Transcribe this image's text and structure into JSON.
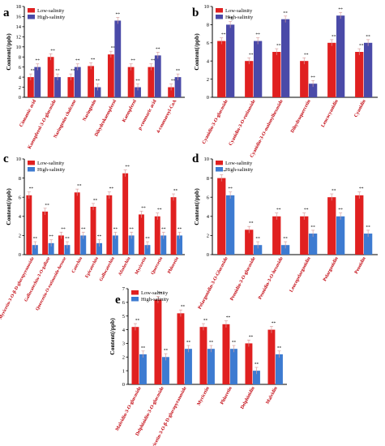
{
  "figure": {
    "width": 475,
    "height": 550
  },
  "colors": {
    "low": "#e02020",
    "high_ab": "#4a4aa8",
    "high_cde": "#3d7bd1",
    "axis": "#000000",
    "panel_label": "#000000"
  },
  "chart_data": [
    {
      "panel": "a",
      "type": "bar",
      "ylabel": "Content(/ppb)",
      "ylim": [
        0,
        18
      ],
      "yticks": [
        0,
        2,
        4,
        6,
        8,
        10,
        12,
        14,
        16,
        18
      ],
      "legend": {
        "placement": "top-left",
        "entries": [
          "Low-salinity",
          "High-salinity"
        ]
      },
      "categories": [
        "Cinnamic acid",
        "Kaempferol-3-O-glucoside",
        "Naringenin chalcone",
        "Naringenin",
        "Dihydrokaempferol",
        "Kaempferol",
        "p-coumaric acid",
        "4-coumaroyl-CoA"
      ],
      "series": [
        {
          "name": "Low-salinity",
          "values": [
            4,
            8,
            4,
            6.2,
            8.5,
            6,
            6,
            2
          ]
        },
        {
          "name": "High-salinity",
          "values": [
            6,
            4,
            6,
            2,
            15.2,
            2,
            8.3,
            4
          ]
        }
      ],
      "significance": "**"
    },
    {
      "panel": "b",
      "type": "bar",
      "ylabel": "Content(/ppb)",
      "ylim": [
        0,
        10
      ],
      "yticks": [
        0,
        2,
        4,
        6,
        8,
        10
      ],
      "legend": {
        "placement": "top-left",
        "entries": [
          "Low-salinity",
          "High-salinity"
        ]
      },
      "categories": [
        "Cyanidin-3-O-glucoside",
        "Cyanidin-3-O-rutinoside",
        "Cyanidin-3-O-malonylhexoside",
        "Dihydroquercetin",
        "Leucocyanidin",
        "Cyanidin"
      ],
      "series": [
        {
          "name": "Low-salinity",
          "values": [
            6.2,
            4,
            5,
            4,
            6,
            5
          ]
        },
        {
          "name": "High-salinity",
          "values": [
            8,
            6.2,
            8.6,
            1.5,
            9,
            6
          ]
        }
      ],
      "significance": "**"
    },
    {
      "panel": "c",
      "type": "bar",
      "ylabel": "Content(/ppb)",
      "ylim": [
        0,
        10
      ],
      "yticks": [
        0,
        2,
        4,
        6,
        8,
        10
      ],
      "legend": {
        "placement": "top-left",
        "entries": [
          "Low-salinity",
          "High-salinity"
        ]
      },
      "categories": [
        "Myricetin-3-O-β-D-glucopyranoside",
        "Gallocatechin-3-O-gallate",
        "Quercetin-O-rutinoside-hexose",
        "Catechin",
        "Epicatechin",
        "Gallocatechin",
        "Afzelechin",
        "Myricetin",
        "Quercetin",
        "Phloretin"
      ],
      "series": [
        {
          "name": "Low-salinity",
          "values": [
            6.2,
            4.5,
            2,
            6.5,
            5,
            6.2,
            8.5,
            4.2,
            4,
            6
          ]
        },
        {
          "name": "High-salinity",
          "values": [
            1,
            1.2,
            1,
            2,
            1.2,
            2,
            2,
            1,
            2,
            2
          ]
        }
      ],
      "significance": "**"
    },
    {
      "panel": "d",
      "type": "bar",
      "ylabel": "Content(/ppb)",
      "ylim": [
        0,
        10
      ],
      "yticks": [
        0,
        2,
        4,
        6,
        8,
        10
      ],
      "legend": {
        "placement": "top-left",
        "entries": [
          "Low-salinity",
          "High-salinity"
        ]
      },
      "categories": [
        "Pelargonidin-3-O-Glucoside",
        "Peonidin-3-O-glucoside",
        "Peonidin-3-O-hexoside",
        "Leucopelargonidin",
        "Pelargonidin",
        "Peonidin"
      ],
      "series": [
        {
          "name": "Low-salinity",
          "values": [
            8,
            2.6,
            4,
            4,
            6,
            6.2
          ]
        },
        {
          "name": "High-salinity",
          "values": [
            6.2,
            1,
            1,
            2.2,
            4,
            2.2
          ]
        }
      ],
      "significance": "**"
    },
    {
      "panel": "e",
      "type": "bar",
      "ylabel": "Content(/ppb)",
      "ylim": [
        0,
        7
      ],
      "yticks": [
        0,
        1,
        2,
        3,
        4,
        5,
        6,
        7
      ],
      "legend": {
        "placement": "top-left",
        "entries": [
          "Low-salinity",
          "High-salinity"
        ]
      },
      "categories": [
        "Malvidin-3-O-glucoside",
        "Delphinidin-3-O-glucoside",
        "Myricetin-3-O-β-D-glucopyranoside",
        "Myricetin",
        "Phloretin",
        "Delphinidin",
        "Malvidin"
      ],
      "series": [
        {
          "name": "Low-salinity",
          "values": [
            4.2,
            6.2,
            5.2,
            4.2,
            4.4,
            3,
            4
          ]
        },
        {
          "name": "High-salinity",
          "values": [
            2.2,
            2,
            2.6,
            2.6,
            2.6,
            1,
            2.2
          ]
        }
      ],
      "significance": "**"
    }
  ]
}
